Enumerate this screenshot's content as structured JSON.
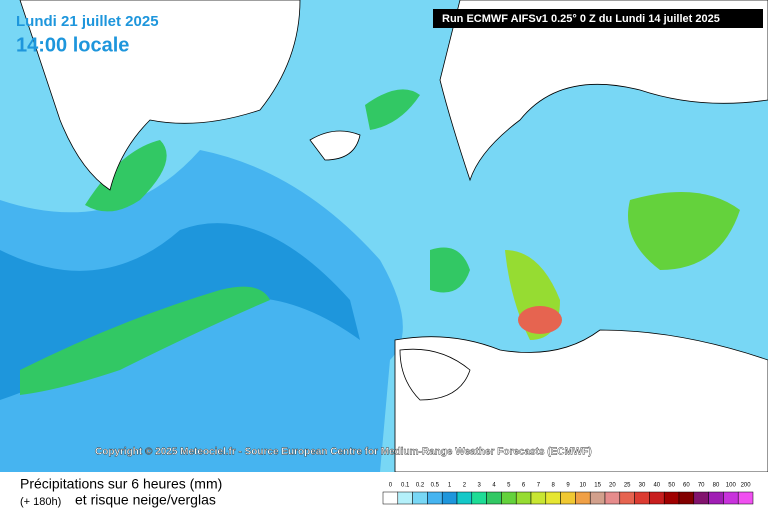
{
  "header": {
    "date": "Lundi 21 juillet 2025",
    "time": "14:00 locale",
    "run": "Run ECMWF AIFSv1 0.25° 0 Z du Lundi 14 juillet 2025"
  },
  "copyright": "Copyright © 2025 Meteociel.fr - Source European Centre for Medium-Range Weather Forecasts (ECMWF)",
  "footer": {
    "title": "Précipitations sur 6 heures (mm)",
    "lead": "(+ 180h)",
    "subtitle": "et risque neige/verglas"
  },
  "legend": [
    {
      "label": "0",
      "color": "#ffffff"
    },
    {
      "label": "0.1",
      "color": "#b4f0fa"
    },
    {
      "label": "0.2",
      "color": "#78d7f5"
    },
    {
      "label": "0.5",
      "color": "#46b4f0"
    },
    {
      "label": "1",
      "color": "#1e96dc"
    },
    {
      "label": "2",
      "color": "#14c8c8"
    },
    {
      "label": "3",
      "color": "#1edc96"
    },
    {
      "label": "4",
      "color": "#32c864"
    },
    {
      "label": "5",
      "color": "#64d23c"
    },
    {
      "label": "6",
      "color": "#96dc32"
    },
    {
      "label": "7",
      "color": "#c8e632"
    },
    {
      "label": "8",
      "color": "#e6e632"
    },
    {
      "label": "9",
      "color": "#f0c832"
    },
    {
      "label": "10",
      "color": "#f0a046"
    },
    {
      "label": "15",
      "color": "#d2a08c"
    },
    {
      "label": "20",
      "color": "#e68c8c"
    },
    {
      "label": "25",
      "color": "#e66450"
    },
    {
      "label": "30",
      "color": "#dc3c32"
    },
    {
      "label": "40",
      "color": "#c81e1e"
    },
    {
      "label": "50",
      "color": "#a00000"
    },
    {
      "label": "60",
      "color": "#820000"
    },
    {
      "label": "70",
      "color": "#82146e"
    },
    {
      "label": "80",
      "color": "#a01eb4"
    },
    {
      "label": "100",
      "color": "#c832dc"
    },
    {
      "label": "200",
      "color": "#f050f0"
    }
  ]
}
